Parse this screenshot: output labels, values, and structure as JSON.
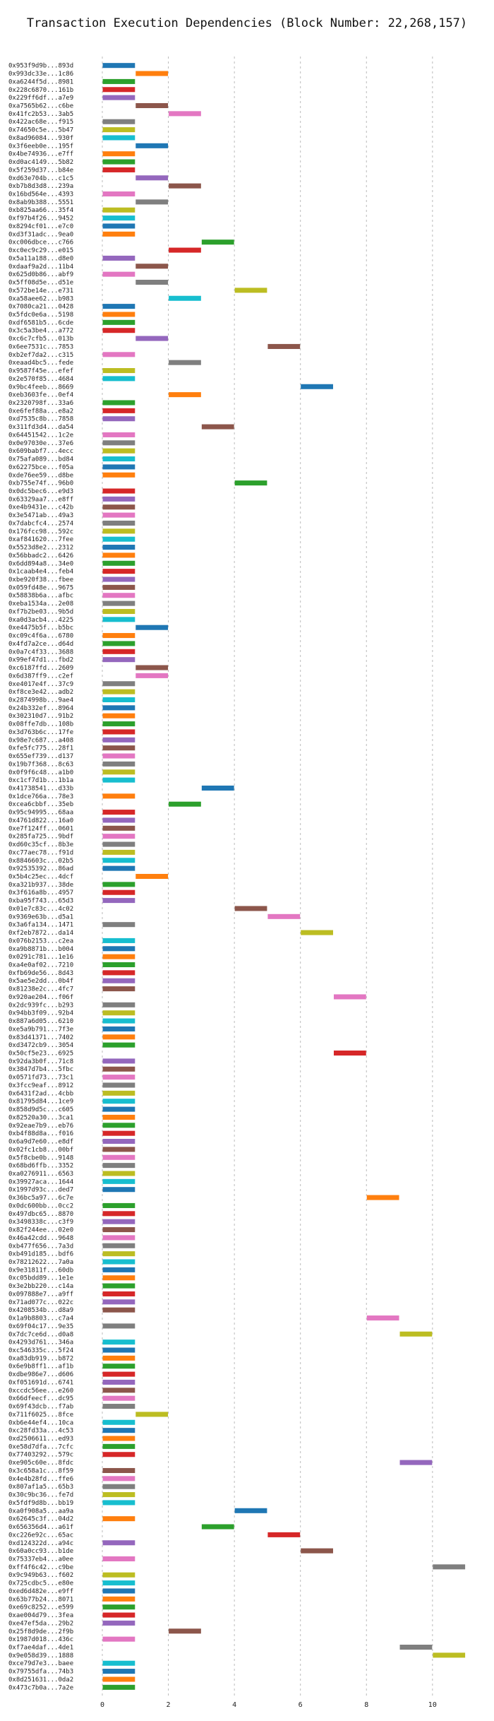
{
  "chart_data": {
    "type": "bar",
    "orientation": "horizontal-gantt",
    "title": "Transaction Execution Dependencies (Block Number: 22,268,157)",
    "xlabel": "",
    "ylabel": "",
    "xlim": [
      0,
      11.5
    ],
    "xticks": [
      0,
      2,
      4,
      6,
      8,
      10
    ],
    "grid": "vertical-dashed",
    "colors": [
      "#1f77b4",
      "#ff7f0e",
      "#2ca02c",
      "#d62728",
      "#9467bd",
      "#8c564b",
      "#e377c2",
      "#7f7f7f",
      "#bcbd22",
      "#17becf"
    ],
    "labels": [
      "0x953f9d9b...893d",
      "0x993dc33e...1c86",
      "0xa6244f5d...8981",
      "0x228c6870...161b",
      "0x229ff6df...a7e9",
      "0xa7565b62...c6be",
      "0x41fc2b53...3ab5",
      "0x422ac68e...f915",
      "0x74650c5e...5b47",
      "0x8ad96084...930f",
      "0x3f6eeb0e...195f",
      "0x4be74936...e7ff",
      "0xd0ac4149...5b82",
      "0x5f259d37...b84e",
      "0xd63e704b...c1c5",
      "0xb7b8d3d8...239a",
      "0x16bd564e...4393",
      "0x8ab9b388...5551",
      "0xb825aa66...35f4",
      "0xf97b4f26...9452",
      "0x8294cf01...e7c0",
      "0xd3f31adc...9ea0",
      "0xc006dbce...c766",
      "0xc0ec9c29...e015",
      "0x5a11a188...d8e0",
      "0xdaaf9a2d...11b4",
      "0x625d0b86...abf9",
      "0x5ff08d5e...d51e",
      "0x572be14e...e731",
      "0xa58aee62...b983",
      "0x7080ca21...0428",
      "0x5fdc0e6a...5198",
      "0xdf6581b5...6cde",
      "0x3c5a3be4...a772",
      "0xc6c7cfb5...013b",
      "0x6ee7531c...7853",
      "0xb2ef7da2...c315",
      "0xeaad4bc5...fede",
      "0x9587f45e...efef",
      "0x2e570f85...4684",
      "0x9bc4feeb...8669",
      "0xeb3603fe...0ef4",
      "0x2320798f...33a6",
      "0xe6fef88a...e8a2",
      "0xd7535c8b...7858",
      "0x311fd3d4...da54",
      "0x64451542...1c2e",
      "0x0e97030e...37e6",
      "0x609babf7...4ecc",
      "0x75afa089...bd84",
      "0x62275bce...f05a",
      "0xde76ee59...d8be",
      "0xb755e74f...96b0",
      "0x0dc5bec6...e9d3",
      "0x63329aa7...e8ff",
      "0xe4b9431e...c42b",
      "0x3e5471ab...49a3",
      "0x7dabcfc4...2574",
      "0x176fcc98...592c",
      "0xaf841620...7fee",
      "0x5523d8e2...2312",
      "0x56bbadc2...6426",
      "0x6dd894a8...34e0",
      "0x1caab4e4...feb4",
      "0xbe920f38...fbee",
      "0x059fd48e...9675",
      "0x58838b6a...afbc",
      "0xeba1534a...2e08",
      "0xf7b2be03...9b5d",
      "0xa0d3acb4...4225",
      "0xe4475b5f...b5bc",
      "0xc09c4f6a...6780",
      "0x4fd7a2ce...d64d",
      "0x0a7c4f33...3688",
      "0x99ef47d1...fbd2",
      "0xc6187ffd...2609",
      "0x6d387ff9...c2ef",
      "0xe4017e4f...37c9",
      "0xf8ce3e42...adb2",
      "0x2874998b...9ae4",
      "0x24b332ef...8964",
      "0x302310d7...91b2",
      "0x08ffe7db...108b",
      "0x3d763b6c...17fe",
      "0x98e7c687...a408",
      "0xfe5fc775...28f1",
      "0x655ef739...d137",
      "0x19b7f368...8c63",
      "0x0f9f6c48...a1b0",
      "0xc1cf7d1b...1b1a",
      "0x41738541...d33b",
      "0x1dce766a...78e3",
      "0xcea6cbbf...35eb",
      "0x95c94995...68aa",
      "0x4761d822...16a0",
      "0xe7f124ff...0601",
      "0x285fa725...9bdf",
      "0xd60c35cf...8b3e",
      "0xc77aec78...f91d",
      "0x8846603c...02b5",
      "0x92535392...86ad",
      "0x5b4c25ec...4dcf",
      "0xa321b937...38de",
      "0x3f616a8b...4957",
      "0xba95f743...65d3",
      "0x01e7c83c...4c02",
      "0x9369e63b...d5a1",
      "0x3a6fa134...1471",
      "0xf2eb7872...da14",
      "0x076b2153...c2ea",
      "0xa9b8871b...b004",
      "0x0291c781...1e16",
      "0xa4e0af02...7210",
      "0xfb69de56...8d43",
      "0x5ae5e2dd...0b4f",
      "0x81238e2c...4fc7",
      "0x920ae204...f06f",
      "0x2dc939fc...b293",
      "0x94bb3f09...92b4",
      "0x887a6d05...6210",
      "0xe5a9b791...7f3e",
      "0x83d41371...7402",
      "0xd3472cb9...3054",
      "0x50cf5e23...6925",
      "0x92da3b0f...71c8",
      "0x3847d7b4...5fbc",
      "0x0571fd73...73c1",
      "0x3fcc9eaf...8912",
      "0x6431f2ad...4cbb",
      "0x81795d84...1ce9",
      "0x858d9d5c...c605",
      "0x82520a30...3ca1",
      "0x92eae7b9...eb76",
      "0xb4f88d8a...f016",
      "0x6a9d7e60...e8df",
      "0x02fc1cb8...00bf",
      "0x5f8cbe0b...9148",
      "0x68bd6ffb...3352",
      "0xa0276911...6563",
      "0x39927aca...1644",
      "0x1997d93c...ded7",
      "0x36bc5a97...6c7e",
      "0x0dc600bb...0cc2",
      "0x497dbc65...8870",
      "0x3498338c...c3f9",
      "0x82f244ee...02e0",
      "0x46a42cdd...9648",
      "0xb477f656...7a3d",
      "0xb491d185...bdf6",
      "0x78212622...7a0a",
      "0x9e31811f...60db",
      "0xc05bdd89...1e1e",
      "0x3e2bb220...c14a",
      "0x097888e7...a9ff",
      "0x71ad077c...022c",
      "0x4208534b...d8a9",
      "0x1a9b8803...c7a4",
      "0x69f04c17...9e35",
      "0x7dc7ce6d...d0a8",
      "0x4293d761...346a",
      "0xc546335c...5f24",
      "0xa83db919...b872",
      "0x6e9b8ff1...af1b",
      "0xdbe986e7...d606",
      "0xf051691d...6741",
      "0xccdc56ee...e260",
      "0x66dfeecf...dc95",
      "0x69f43dcb...f7ab",
      "0x711f6025...8fce",
      "0xb6e44ef4...10ca",
      "0xc28fd33a...4c53",
      "0xd2506611...ed93",
      "0xe58d7dfa...7cfc",
      "0x77403292...579c",
      "0xe905c60e...8fdc",
      "0x3c658a1c...8f59",
      "0x4e4b28fd...ffe6",
      "0x807af1a5...65b3",
      "0x30c9bc36...fe7d",
      "0x5fdf9d8b...bb19",
      "0xa0f908a5...aa9a",
      "0x62645c3f...04d2",
      "0x656356d4...a61f",
      "0xc226e92c...65ac",
      "0xd124322d...a94c",
      "0x60a0cc93...b1de",
      "0x75337eb4...a0ee",
      "0xff4f6c42...c9be",
      "0x9c949b63...f602",
      "0x725cdbc5...e80e",
      "0xed6d482e...e9ff",
      "0x63b77b24...8071",
      "0xe69c8252...e599",
      "0xae004d79...3fea",
      "0xe47ef5da...29b2",
      "0x25f8d9de...2f9b",
      "0x1987d018...436c",
      "0xf7ae4daf...4de1",
      "0x9e058d39...1888",
      "0xce79d7e3...baee",
      "0x79755dfa...74b3",
      "0x8d251631...0da2",
      "0x473c7b0a...7a2e"
    ],
    "starts": [
      0,
      1,
      0,
      0,
      0,
      1,
      2,
      0,
      0,
      0,
      1,
      0,
      0,
      0,
      1,
      2,
      0,
      1,
      0,
      0,
      0,
      0,
      3,
      2,
      0,
      1,
      0,
      1,
      4,
      2,
      0,
      0,
      0,
      0,
      1,
      5,
      0,
      2,
      0,
      0,
      6,
      2,
      0,
      0,
      0,
      3,
      0,
      0,
      0,
      0,
      0,
      0,
      4,
      0,
      0,
      0,
      0,
      0,
      0,
      0,
      0,
      0,
      0,
      0,
      0,
      0,
      0,
      0,
      0,
      0,
      1,
      0,
      0,
      0,
      0,
      1,
      1,
      0,
      0,
      0,
      0,
      0,
      0,
      0,
      0,
      0,
      0,
      0,
      0,
      0,
      3,
      0,
      2,
      0,
      0,
      0,
      0,
      0,
      0,
      0,
      0,
      1,
      0,
      0,
      0,
      4,
      5,
      0,
      6,
      0,
      0,
      0,
      0,
      0,
      0,
      0,
      7,
      0,
      0,
      0,
      0,
      0,
      0,
      7,
      0,
      0,
      0,
      0,
      0,
      0,
      0,
      0,
      0,
      0,
      0,
      0,
      0,
      0,
      0,
      0,
      0,
      8,
      0,
      0,
      0,
      0,
      0,
      0,
      0,
      0,
      0,
      0,
      0,
      0,
      0,
      0,
      8,
      0,
      9,
      0,
      0,
      0,
      0,
      0,
      0,
      0,
      0,
      0,
      1,
      0,
      0,
      0,
      0,
      0,
      9,
      0,
      0,
      0,
      0,
      0,
      4,
      0,
      3,
      5,
      0,
      6,
      0,
      10,
      0,
      0,
      0,
      0,
      0,
      0,
      0,
      2,
      0,
      9,
      10,
      0,
      0,
      0,
      0
    ],
    "durations": [
      1,
      1,
      1,
      1,
      1,
      1,
      1,
      1,
      1,
      1,
      1,
      1,
      1,
      1,
      1,
      1,
      1,
      1,
      1,
      1,
      1,
      1,
      1,
      1,
      1,
      1,
      1,
      1,
      1,
      1,
      1,
      1,
      1,
      1,
      1,
      1,
      1,
      1,
      1,
      1,
      1,
      1,
      1,
      1,
      1,
      1,
      1,
      1,
      1,
      1,
      1,
      1,
      1,
      1,
      1,
      1,
      1,
      1,
      1,
      1,
      1,
      1,
      1,
      1,
      1,
      1,
      1,
      1,
      1,
      1,
      1,
      1,
      1,
      1,
      1,
      1,
      1,
      1,
      1,
      1,
      1,
      1,
      1,
      1,
      1,
      1,
      1,
      1,
      1,
      1,
      1,
      1,
      1,
      1,
      1,
      1,
      1,
      1,
      1,
      1,
      1,
      1,
      1,
      1,
      1,
      1,
      1,
      1,
      1,
      1,
      1,
      1,
      1,
      1,
      1,
      1,
      1,
      1,
      1,
      1,
      1,
      1,
      1,
      1,
      1,
      1,
      1,
      1,
      1,
      1,
      1,
      1,
      1,
      1,
      1,
      1,
      1,
      1,
      1,
      1,
      1,
      1,
      1,
      1,
      1,
      1,
      1,
      1,
      1,
      1,
      1,
      1,
      1,
      1,
      1,
      1,
      1,
      1,
      1,
      1,
      1,
      1,
      1,
      1,
      1,
      1,
      1,
      1,
      1,
      1,
      1,
      1,
      1,
      1,
      1,
      1,
      1,
      1,
      1,
      1,
      1,
      1,
      1,
      1,
      1,
      1,
      1,
      1,
      1,
      1,
      1,
      1,
      1,
      1,
      1,
      1,
      1,
      1,
      1,
      1,
      1,
      1,
      1
    ]
  }
}
